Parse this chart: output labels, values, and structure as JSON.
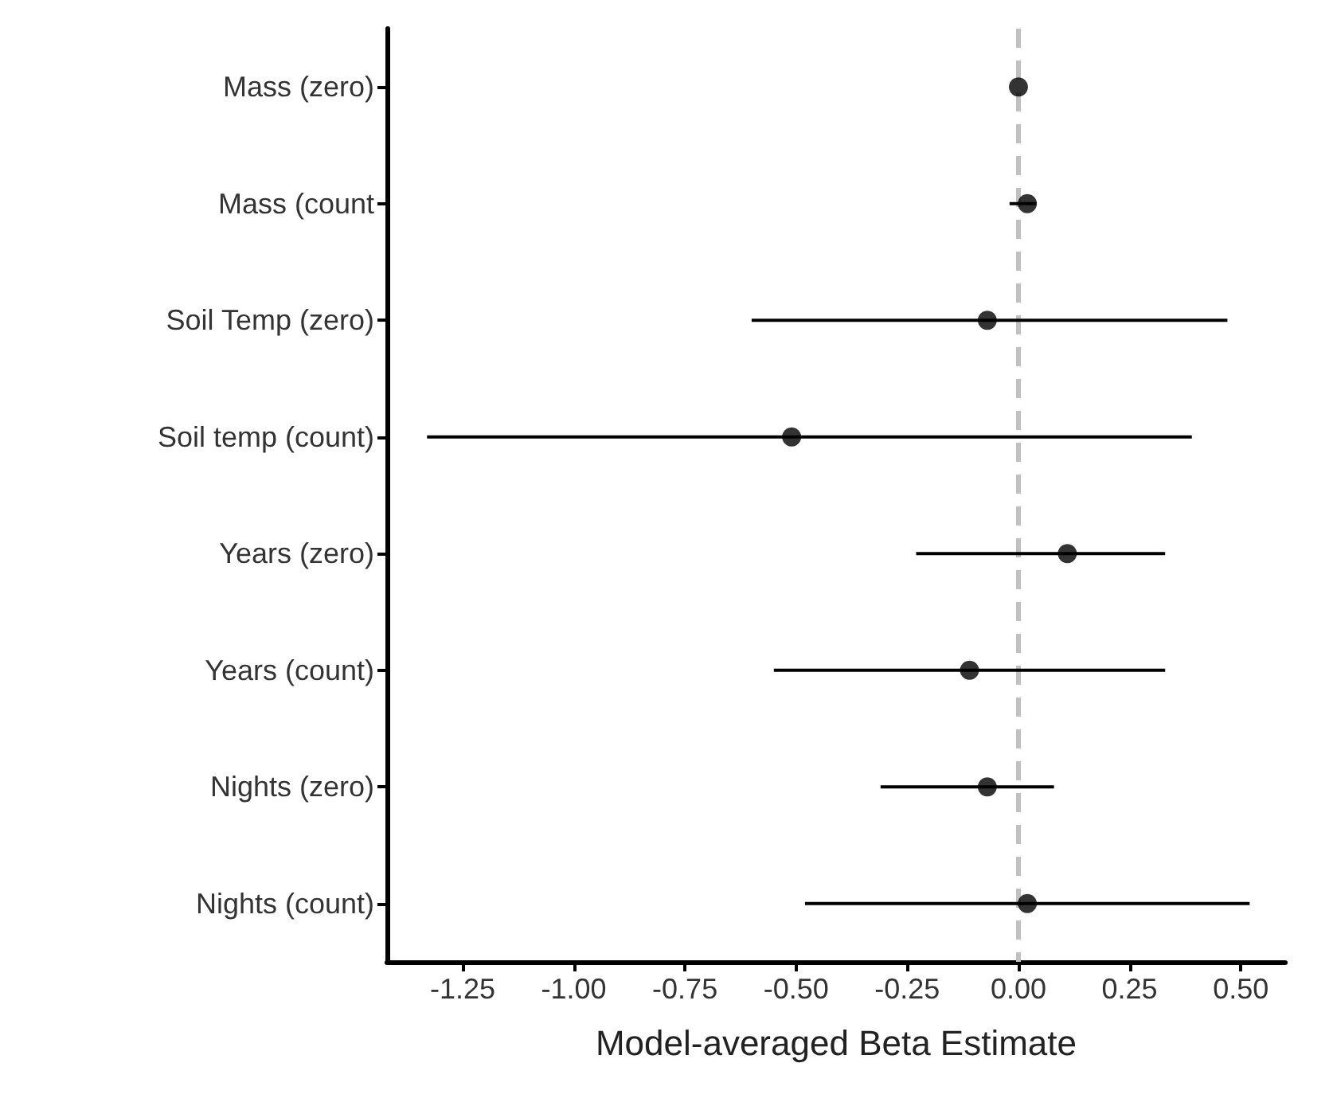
{
  "chart_data": {
    "type": "scatter",
    "orientation": "horizontal",
    "xlabel": "Model-averaged Beta Estimate",
    "categories": [
      "Mass (zero)",
      "Mass (count",
      "Soil Temp (zero)",
      "Soil temp (count)",
      "Years (zero)",
      "Years (count)",
      "Nights (zero)",
      "Nights (count)"
    ],
    "values": [
      0.0,
      0.02,
      -0.07,
      -0.51,
      0.11,
      -0.11,
      -0.07,
      0.02
    ],
    "errors": [
      null,
      [
        -0.02,
        0.04
      ],
      [
        -0.6,
        0.47
      ],
      [
        -1.33,
        0.39
      ],
      [
        -0.23,
        0.33
      ],
      [
        -0.55,
        0.33
      ],
      [
        -0.31,
        0.08
      ],
      [
        -0.48,
        0.52
      ]
    ],
    "color": "#000000",
    "marker": "circle",
    "xlim": [
      -1.42,
      0.6
    ],
    "xticks": [
      {
        "value": -1.25,
        "label": "-1.25"
      },
      {
        "value": -1,
        "label": "-1.00"
      },
      {
        "value": -0.75,
        "label": "-0.75"
      },
      {
        "value": -0.5,
        "label": "-0.50"
      },
      {
        "value": -0.25,
        "label": "-0.25"
      },
      {
        "value": 0,
        "label": "0.00"
      },
      {
        "value": 0.25,
        "label": "0.25"
      },
      {
        "value": 0.5,
        "label": "0.50"
      }
    ],
    "ref_lines": [
      {
        "axis": "x",
        "value": 0,
        "color": "#c0c0c0",
        "line_style": "dashed"
      }
    ],
    "grid": false
  }
}
